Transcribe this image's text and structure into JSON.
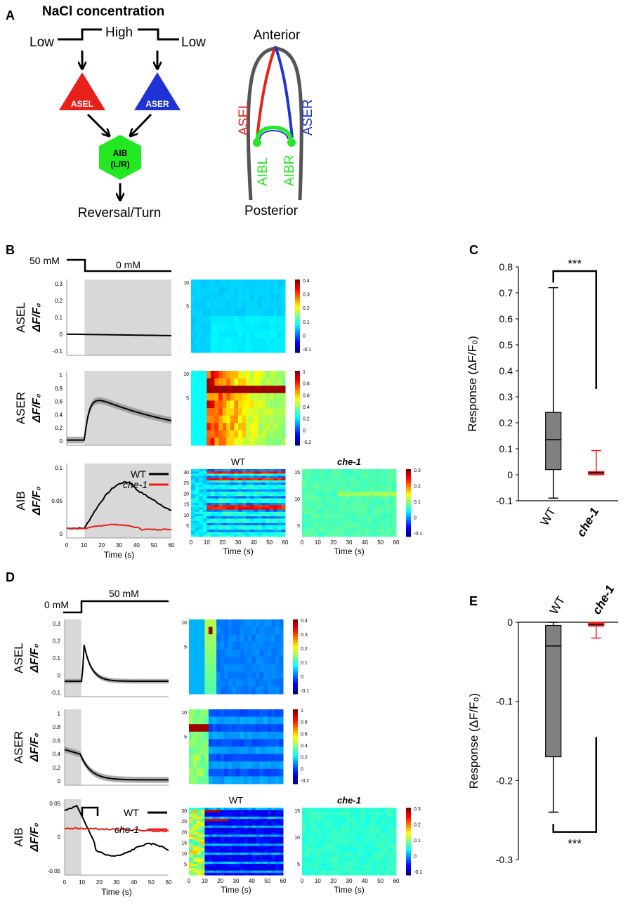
{
  "panels": {
    "A": "A",
    "B": "B",
    "C": "C",
    "D": "D",
    "E": "E"
  },
  "panelA": {
    "title": "NaCl concentration",
    "low_left": "Low",
    "high": "High",
    "low_right": "Low",
    "asel": "ASEL",
    "aser": "ASER",
    "aib_line1": "AIB",
    "aib_line2": "(L/R)",
    "outcome": "Reversal/Turn",
    "anterior": "Anterior",
    "posterior": "Posterior",
    "worm_asel": "ASEL",
    "worm_aser": "ASER",
    "worm_aibl": "AIBL",
    "worm_aibr": "AIBR",
    "colors": {
      "asel": "#e8201a",
      "aser": "#1d33d6",
      "aib": "#22e822"
    }
  },
  "panelB": {
    "stim_left": "50 mM",
    "stim_right": "0 mM",
    "rows": [
      {
        "neuron": "ASEL",
        "yticks": [
          "0.3",
          "0.2",
          "0.1",
          "0",
          "-0.1"
        ]
      },
      {
        "neuron": "ASER",
        "yticks": [
          "1",
          "0.8",
          "0.6",
          "0.4",
          "0.2",
          "0"
        ]
      },
      {
        "neuron": "AIB",
        "yticks": [
          "0.1",
          "0.05",
          "0"
        ]
      }
    ],
    "ylabel": "ΔF/F₀",
    "xticks": [
      "0",
      "10",
      "20",
      "30",
      "40",
      "50",
      "60"
    ],
    "xlabel": "Time  (s)",
    "legend": [
      {
        "label": "WT",
        "color": "#000000"
      },
      {
        "label": "che-1",
        "color": "#e8201a"
      }
    ],
    "heat_colorbars": [
      {
        "ticks": [
          "0.4",
          "0.3",
          "0.2",
          "0.1",
          "0",
          "-0.1"
        ]
      },
      {
        "ticks": [
          "1",
          "0.8",
          "0.6",
          "0.4",
          "0.2",
          "0",
          "-0.2"
        ]
      },
      {
        "ticks": [
          "0.3",
          "0.2",
          "0.1",
          "0",
          "-0.1"
        ]
      }
    ],
    "heat_yticks": {
      "asel": [
        "10",
        "5"
      ],
      "aser": [
        "10",
        "5"
      ],
      "aib_wt": [
        "30",
        "25",
        "20",
        "15",
        "10",
        "5"
      ],
      "aib_che1": [
        "15",
        "10",
        "5"
      ]
    },
    "heat_titles": {
      "wt": "WT",
      "che1": "che-1"
    }
  },
  "panelC": {
    "ylabel": "Response (ΔF/F₀)",
    "significance": "***",
    "categories": [
      "WT",
      "che-1"
    ],
    "yticks": [
      "0.8",
      "0.7",
      "0.6",
      "0.5",
      "0.4",
      "0.3",
      "0.2",
      "0.1",
      "0",
      "-0.1"
    ]
  },
  "panelD": {
    "stim_left": "0 mM",
    "stim_right": "50 mM",
    "rows": [
      {
        "neuron": "ASEL",
        "yticks": [
          "0.3",
          "0.2",
          "0.1",
          "0",
          "-0.1"
        ]
      },
      {
        "neuron": "ASER",
        "yticks": [
          "1",
          "0.8",
          "0.6",
          "0.4",
          "0.2",
          "0"
        ]
      },
      {
        "neuron": "AIB",
        "yticks": [
          "0.05",
          "0",
          "-0.05"
        ]
      }
    ],
    "ylabel": "ΔF/F₀",
    "xticks": [
      "0",
      "10",
      "20",
      "30",
      "40",
      "50",
      "60"
    ],
    "xlabel": "Time  (s)",
    "legend": [
      {
        "label": "WT",
        "color": "#000000"
      },
      {
        "label": "che-1",
        "color": "#e8201a"
      }
    ],
    "heat_colorbars": [
      {
        "ticks": [
          "0.4",
          "0.3",
          "0.2",
          "0.1",
          "0",
          "-0.1"
        ]
      },
      {
        "ticks": [
          "1",
          "0.8",
          "0.6",
          "0.4",
          "0.2",
          "0",
          "-0.2"
        ]
      },
      {
        "ticks": [
          "0.3",
          "0.2",
          "0.1",
          "0",
          "-0.1"
        ]
      }
    ],
    "heat_yticks": {
      "asel": [
        "10",
        "5"
      ],
      "aser": [
        "10",
        "5"
      ],
      "aib_wt": [
        "30",
        "25",
        "20",
        "15",
        "10",
        "5"
      ],
      "aib_che1": [
        "15",
        "10",
        "5"
      ]
    },
    "heat_titles": {
      "wt": "WT",
      "che1": "che-1"
    }
  },
  "panelE": {
    "ylabel": "Response (ΔF/F₀)",
    "significance": "***",
    "categories": [
      "WT",
      "che-1"
    ],
    "yticks": [
      "0",
      "-0.1",
      "-0.2",
      "-0.3"
    ]
  },
  "chart_data": [
    {
      "type": "box",
      "title": "C",
      "categories": [
        "WT",
        "che-1"
      ],
      "ylabel": "Response (ΔF/F0)",
      "ylim": [
        -0.1,
        0.8
      ],
      "boxes": [
        {
          "name": "WT",
          "min": -0.09,
          "q1": 0.02,
          "median": 0.135,
          "q3": 0.24,
          "max": 0.72,
          "color": "#808080"
        },
        {
          "name": "che-1",
          "min": 0.0,
          "q1": 0.0,
          "median": 0.008,
          "q3": 0.012,
          "max": 0.093,
          "color": "#e8201a"
        }
      ],
      "significance": "***"
    },
    {
      "type": "box",
      "title": "E",
      "categories": [
        "WT",
        "che-1"
      ],
      "ylabel": "Response (ΔF/F0)",
      "ylim": [
        -0.3,
        0
      ],
      "boxes": [
        {
          "name": "WT",
          "min": -0.24,
          "q1": -0.17,
          "median": -0.03,
          "q3": -0.004,
          "max": 0.0,
          "color": "#808080"
        },
        {
          "name": "che-1",
          "min": -0.02,
          "q1": -0.005,
          "median": -0.003,
          "q3": 0.0,
          "max": 0.0,
          "color": "#e8201a"
        }
      ],
      "significance": "***"
    }
  ]
}
